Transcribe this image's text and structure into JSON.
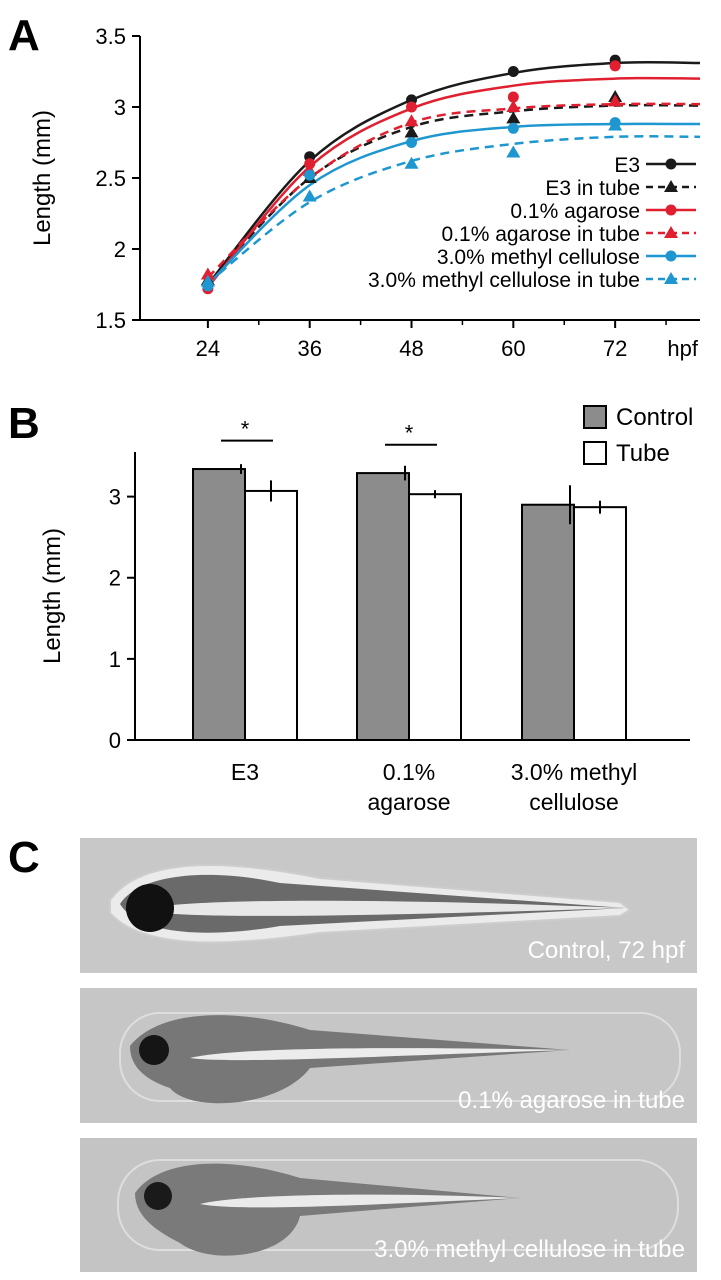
{
  "panels": {
    "a": "A",
    "b": "B",
    "c": "C"
  },
  "chart_data": [
    {
      "type": "line",
      "panel": "A",
      "ylabel": "Length (mm)",
      "xunit": "hpf",
      "x": [
        24,
        36,
        48,
        60,
        72
      ],
      "xticks": [
        "24",
        "36",
        "48",
        "60",
        "72"
      ],
      "yticks": [
        "1.5",
        "2",
        "2.5",
        "3",
        "3.5"
      ],
      "ylim": [
        1.5,
        3.5
      ],
      "xlim": [
        16,
        82
      ],
      "legend_position": "bottom-right",
      "series": [
        {
          "name": "E3",
          "color": "#1a1a1a",
          "marker": "circle",
          "dashed": false,
          "values": [
            1.75,
            2.65,
            3.05,
            3.25,
            3.33
          ],
          "fit": [
            1.75,
            2.62,
            3.05,
            3.24,
            3.31
          ]
        },
        {
          "name": "E3 in tube",
          "color": "#1a1a1a",
          "marker": "triangle",
          "dashed": true,
          "values": [
            1.78,
            2.5,
            2.82,
            2.92,
            3.07
          ],
          "fit": [
            1.76,
            2.5,
            2.86,
            2.97,
            3.01
          ]
        },
        {
          "name": "0.1% agarose",
          "color": "#e02030",
          "marker": "circle",
          "dashed": false,
          "values": [
            1.72,
            2.6,
            3.0,
            3.07,
            3.29
          ],
          "fit": [
            1.73,
            2.58,
            2.99,
            3.15,
            3.2
          ]
        },
        {
          "name": "0.1% agarose in tube",
          "color": "#e02030",
          "marker": "triangle",
          "dashed": true,
          "values": [
            1.82,
            2.55,
            2.9,
            3.0,
            3.04
          ],
          "fit": [
            1.8,
            2.5,
            2.89,
            2.99,
            3.02
          ]
        },
        {
          "name": "3.0% methyl cellulose",
          "color": "#1e96d0",
          "marker": "circle",
          "dashed": false,
          "values": [
            1.74,
            2.52,
            2.75,
            2.85,
            2.89
          ],
          "fit": [
            1.75,
            2.45,
            2.76,
            2.86,
            2.88
          ]
        },
        {
          "name": "3.0% methyl cellulose in tube",
          "color": "#1e96d0",
          "marker": "triangle",
          "dashed": true,
          "values": [
            1.77,
            2.37,
            2.6,
            2.68,
            2.87
          ],
          "fit": [
            1.76,
            2.33,
            2.62,
            2.74,
            2.79
          ]
        }
      ]
    },
    {
      "type": "bar",
      "panel": "B",
      "ylabel": "Length (mm)",
      "categories": [
        [
          "E3"
        ],
        [
          "0.1%",
          "agarose"
        ],
        [
          "3.0% methyl",
          "cellulose"
        ]
      ],
      "yticks": [
        "0",
        "1",
        "2",
        "3"
      ],
      "ylim": [
        0,
        3.55
      ],
      "legend_position": "top-right",
      "significance": [
        "*",
        "*",
        ""
      ],
      "series": [
        {
          "name": "Control",
          "color": "#8c8c8c",
          "values": [
            3.34,
            3.29,
            2.9
          ],
          "errors": [
            0.06,
            0.09,
            0.24
          ]
        },
        {
          "name": "Tube",
          "color": "#ffffff",
          "values": [
            3.07,
            3.03,
            2.87
          ],
          "errors": [
            0.13,
            0.05,
            0.08
          ]
        }
      ]
    }
  ],
  "images": [
    {
      "caption": "Control, 72 hpf",
      "icon": "zebrafish-larva"
    },
    {
      "caption": "0.1% agarose in tube",
      "icon": "zebrafish-larva"
    },
    {
      "caption": "3.0% methyl cellulose in tube",
      "icon": "zebrafish-larva"
    }
  ]
}
